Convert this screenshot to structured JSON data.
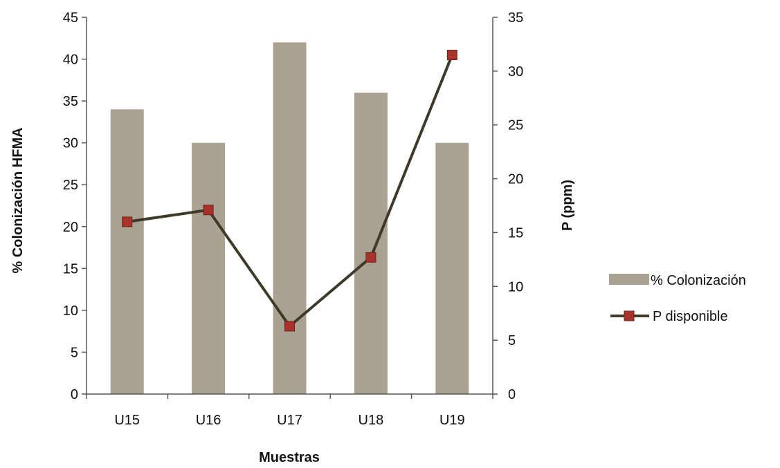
{
  "chart_data": {
    "type": "bar",
    "categories": [
      "U15",
      "U16",
      "U17",
      "U18",
      "U19"
    ],
    "series": [
      {
        "name": "% Colonización",
        "type": "bar",
        "axis": "left",
        "values": [
          34,
          30,
          42,
          36,
          30
        ],
        "color": "#aba392"
      },
      {
        "name": "P disponible",
        "type": "line",
        "axis": "right",
        "values": [
          16.0,
          17.1,
          6.3,
          12.7,
          31.5
        ],
        "color": "#3d3a2a",
        "marker_color": "#a8332a"
      }
    ],
    "xlabel": "Muestras",
    "ylabel": "% Colonización HFMA",
    "y2label": "P (ppm)",
    "ylim": [
      0,
      45
    ],
    "y2lim": [
      0,
      35
    ],
    "yticks": [
      0,
      5,
      10,
      15,
      20,
      25,
      30,
      35,
      40,
      45
    ],
    "y2ticks": [
      0,
      5,
      10,
      15,
      20,
      25,
      30,
      35
    ],
    "grid": false,
    "legend_position": "right"
  }
}
